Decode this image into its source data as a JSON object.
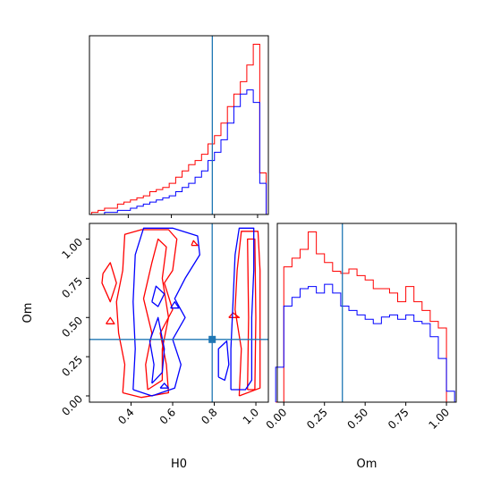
{
  "chart_data": [
    {
      "type": "histogram",
      "panel": "H0 marginal",
      "xlim": [
        0.22,
        1.05
      ],
      "truth": 0.79,
      "bin_edges": [
        0.23,
        0.26,
        0.29,
        0.32,
        0.35,
        0.38,
        0.41,
        0.44,
        0.47,
        0.5,
        0.53,
        0.56,
        0.59,
        0.62,
        0.65,
        0.68,
        0.71,
        0.74,
        0.77,
        0.8,
        0.83,
        0.86,
        0.89,
        0.92,
        0.95,
        0.98,
        1.01,
        1.04
      ],
      "series": [
        {
          "name": "",
          "color": "#ff0000",
          "counts": [
            1,
            2,
            3,
            3,
            5,
            6,
            7,
            8,
            9,
            11,
            12,
            13,
            15,
            18,
            21,
            24,
            26,
            29,
            34,
            38,
            44,
            52,
            58,
            64,
            72,
            82,
            20
          ]
        },
        {
          "name": "",
          "color": "#0000ff",
          "counts": [
            0,
            0,
            1,
            1,
            2,
            2,
            3,
            4,
            5,
            6,
            7,
            8,
            9,
            11,
            13,
            15,
            18,
            21,
            26,
            30,
            36,
            44,
            52,
            58,
            60,
            54,
            15
          ]
        }
      ]
    },
    {
      "type": "contour",
      "panel": "H0 vs Om",
      "xlabel": "H0",
      "ylabel": "Om",
      "xlim": [
        0.2,
        1.06
      ],
      "ylim": [
        -0.04,
        1.1
      ],
      "xticks": [
        "0.4",
        "0.6",
        "0.8",
        "1.0"
      ],
      "xtick_values": [
        0.4,
        0.6,
        0.8,
        1.0
      ],
      "yticks": [
        "0.00",
        "0.25",
        "0.50",
        "0.75",
        "1.00"
      ],
      "ytick_values": [
        0.0,
        0.25,
        0.5,
        0.75,
        1.0
      ],
      "truth": {
        "H0": 0.79,
        "Om": 0.36
      },
      "series": [
        {
          "name": "",
          "color": "#ff0000",
          "contours": [
            [
              [
                0.36,
                0.02
              ],
              [
                0.37,
                0.2
              ],
              [
                0.34,
                0.4
              ],
              [
                0.33,
                0.6
              ],
              [
                0.36,
                0.8
              ],
              [
                0.37,
                1.03
              ],
              [
                0.45,
                1.06
              ],
              [
                0.58,
                1.06
              ],
              [
                0.62,
                1.0
              ],
              [
                0.6,
                0.8
              ],
              [
                0.56,
                0.72
              ],
              [
                0.6,
                0.55
              ],
              [
                0.54,
                0.4
              ],
              [
                0.57,
                0.2
              ],
              [
                0.58,
                0.02
              ],
              [
                0.45,
                -0.01
              ],
              [
                0.36,
                0.02
              ]
            ],
            [
              [
                0.48,
                0.04
              ],
              [
                0.47,
                0.2
              ],
              [
                0.5,
                0.4
              ],
              [
                0.46,
                0.62
              ],
              [
                0.5,
                0.85
              ],
              [
                0.53,
                1.0
              ],
              [
                0.57,
                0.95
              ],
              [
                0.55,
                0.75
              ],
              [
                0.58,
                0.5
              ],
              [
                0.55,
                0.3
              ],
              [
                0.55,
                0.1
              ],
              [
                0.48,
                0.04
              ]
            ],
            [
              [
                0.92,
                0.0
              ],
              [
                0.93,
                0.3
              ],
              [
                0.9,
                0.55
              ],
              [
                0.91,
                0.8
              ],
              [
                0.93,
                1.05
              ],
              [
                1.01,
                1.05
              ],
              [
                1.02,
                0.8
              ],
              [
                1.02,
                0.4
              ],
              [
                1.02,
                0.05
              ],
              [
                0.92,
                0.0
              ]
            ],
            [
              [
                0.96,
                0.04
              ],
              [
                0.965,
                0.5
              ],
              [
                0.96,
                1.0
              ],
              [
                0.995,
                1.0
              ],
              [
                1.0,
                0.5
              ],
              [
                0.995,
                0.04
              ],
              [
                0.96,
                0.04
              ]
            ],
            [
              [
                0.265,
                0.78
              ],
              [
                0.3,
                0.85
              ],
              [
                0.33,
                0.72
              ],
              [
                0.3,
                0.6
              ],
              [
                0.26,
                0.72
              ],
              [
                0.265,
                0.78
              ]
            ],
            [
              [
                0.28,
                0.46
              ],
              [
                0.3,
                0.5
              ],
              [
                0.32,
                0.46
              ],
              [
                0.28,
                0.46
              ]
            ],
            [
              [
                0.87,
                0.5
              ],
              [
                0.89,
                0.53
              ],
              [
                0.92,
                0.5
              ],
              [
                0.87,
                0.5
              ]
            ],
            [
              [
                0.69,
                0.96
              ],
              [
                0.7,
                0.99
              ],
              [
                0.72,
                0.96
              ],
              [
                0.69,
                0.96
              ]
            ]
          ]
        },
        {
          "name": "",
          "color": "#0000ff",
          "contours": [
            [
              [
                0.41,
                0.04
              ],
              [
                0.42,
                0.3
              ],
              [
                0.41,
                0.6
              ],
              [
                0.42,
                0.9
              ],
              [
                0.46,
                1.07
              ],
              [
                0.6,
                1.07
              ],
              [
                0.72,
                1.02
              ],
              [
                0.73,
                0.9
              ],
              [
                0.66,
                0.75
              ],
              [
                0.61,
                0.62
              ],
              [
                0.66,
                0.5
              ],
              [
                0.6,
                0.36
              ],
              [
                0.64,
                0.2
              ],
              [
                0.61,
                0.05
              ],
              [
                0.5,
                0.0
              ],
              [
                0.41,
                0.04
              ]
            ],
            [
              [
                0.5,
                0.08
              ],
              [
                0.51,
                0.2
              ],
              [
                0.49,
                0.35
              ],
              [
                0.53,
                0.5
              ],
              [
                0.56,
                0.3
              ],
              [
                0.55,
                0.15
              ],
              [
                0.5,
                0.08
              ]
            ],
            [
              [
                0.5,
                0.6
              ],
              [
                0.52,
                0.7
              ],
              [
                0.56,
                0.65
              ],
              [
                0.53,
                0.57
              ],
              [
                0.5,
                0.6
              ]
            ],
            [
              [
                0.88,
                0.04
              ],
              [
                0.88,
                0.3
              ],
              [
                0.89,
                0.6
              ],
              [
                0.9,
                0.9
              ],
              [
                0.92,
                1.07
              ],
              [
                0.99,
                1.07
              ],
              [
                0.99,
                0.8
              ],
              [
                0.98,
                0.5
              ],
              [
                0.98,
                0.1
              ],
              [
                0.95,
                0.04
              ],
              [
                0.88,
                0.04
              ]
            ],
            [
              [
                0.82,
                0.12
              ],
              [
                0.82,
                0.3
              ],
              [
                0.86,
                0.35
              ],
              [
                0.87,
                0.2
              ],
              [
                0.85,
                0.1
              ],
              [
                0.82,
                0.12
              ]
            ],
            [
              [
                0.54,
                0.05
              ],
              [
                0.56,
                0.08
              ],
              [
                0.58,
                0.05
              ],
              [
                0.54,
                0.05
              ]
            ],
            [
              [
                0.59,
                0.56
              ],
              [
                0.61,
                0.6
              ],
              [
                0.63,
                0.56
              ],
              [
                0.59,
                0.56
              ]
            ]
          ]
        }
      ]
    },
    {
      "type": "histogram",
      "panel": "Om marginal",
      "xlabel": "Om",
      "xlim": [
        -0.04,
        1.06
      ],
      "xticks": [
        "0.00",
        "0.25",
        "0.50",
        "0.75",
        "1.00"
      ],
      "xtick_values": [
        0.0,
        0.25,
        0.5,
        0.75,
        1.0
      ],
      "truth": 0.36,
      "bin_edges": [
        -0.05,
        0.0,
        0.05,
        0.1,
        0.15,
        0.2,
        0.25,
        0.3,
        0.35,
        0.4,
        0.45,
        0.5,
        0.55,
        0.6,
        0.65,
        0.7,
        0.75,
        0.8,
        0.85,
        0.9,
        0.95,
        1.0,
        1.05
      ],
      "series": [
        {
          "name": "",
          "color": "#ff0000",
          "counts": [
            0,
            62,
            66,
            70,
            78,
            68,
            64,
            60,
            59,
            61,
            58,
            56,
            52,
            52,
            50,
            46,
            53,
            46,
            42,
            37,
            34,
            0
          ]
        },
        {
          "name": "",
          "color": "#0000ff",
          "counts": [
            16,
            44,
            48,
            52,
            53,
            50,
            54,
            50,
            44,
            42,
            40,
            38,
            36,
            39,
            40,
            38,
            40,
            37,
            36,
            30,
            20,
            5
          ]
        }
      ]
    }
  ]
}
